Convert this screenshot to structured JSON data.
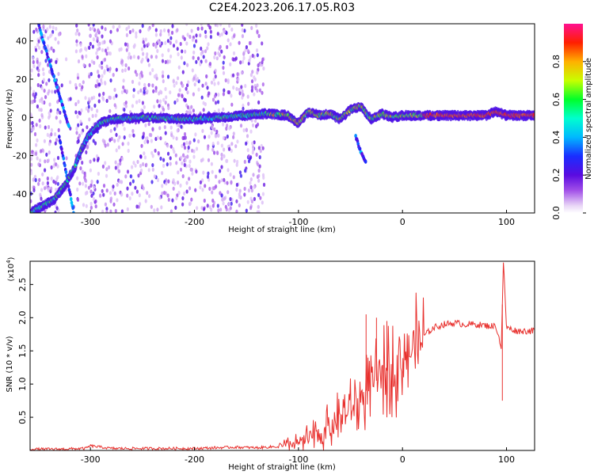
{
  "title": "C2E4.2023.206.17.05.R03",
  "colors": {
    "snr_line": "#e8312e",
    "axis": "#000000"
  },
  "chart_data": [
    {
      "type": "heatmap",
      "xlabel": "Height of straight line (km)",
      "ylabel": "Frequency (Hz)",
      "xlim": [
        -358,
        127
      ],
      "ylim": [
        -50,
        49
      ],
      "xticks": [
        -300,
        -200,
        -100,
        0,
        100
      ],
      "yticks": [
        -40,
        -20,
        0,
        20,
        40
      ],
      "colorbar": {
        "label": "Normalized spectral amplitude",
        "ticks": [
          0.0,
          0.2,
          0.4,
          0.6,
          0.8
        ],
        "range": [
          0,
          1
        ],
        "colormap": "rainbow (white, violet, blue, cyan, green, yellow, red, magenta)"
      },
      "main_trace": {
        "description": "frequency of strongest signal vs height",
        "x": [
          -358,
          -345,
          -335,
          -325,
          -315,
          -308,
          -302,
          -296,
          -290,
          -280,
          -250,
          -200,
          -150,
          -130,
          -110,
          -100,
          -90,
          -80,
          -70,
          -60,
          -50,
          -40,
          -30,
          -20,
          -10,
          0,
          20,
          50,
          80,
          90,
          100,
          127
        ],
        "y": [
          -50,
          -46,
          -43,
          -36,
          -26,
          -16,
          -10,
          -6,
          -3,
          -1,
          0,
          -1,
          1,
          2,
          1,
          -3,
          3,
          1,
          2,
          -1,
          4,
          6,
          -1,
          2,
          0,
          1,
          1,
          1,
          1,
          3,
          1,
          1
        ]
      },
      "secondary_traces": [
        {
          "x": [
            -350,
            -340,
            -330,
            -320
          ],
          "y": [
            49,
            30,
            12,
            -6
          ]
        },
        {
          "x": [
            -330,
            -323,
            -316
          ],
          "y": [
            -10,
            -30,
            -50
          ]
        },
        {
          "x": [
            -45,
            -40,
            -35
          ],
          "y": [
            -10,
            -18,
            -24
          ]
        }
      ]
    },
    {
      "type": "line",
      "xlabel": "Height of straight line (km)",
      "ylabel": "SNR (10 * v/v)",
      "ylabel_note": "(x10",
      "ylabel_note_exp": "4",
      "ylabel_note_close": ")",
      "xlim": [
        -358,
        127
      ],
      "ylim": [
        0,
        2.85
      ],
      "xticks": [
        -300,
        -200,
        -100,
        0,
        100
      ],
      "yticks": [
        0.5,
        1.0,
        1.5,
        2.0,
        2.5
      ],
      "ytick_labels": [
        "0.5",
        "1.0",
        "1.5",
        "2.0",
        "2.5"
      ],
      "series": [
        {
          "x": [
            -358,
            -330,
            -305,
            -300,
            -280,
            -260,
            -240,
            -220,
            -200,
            -180,
            -160,
            -140,
            -120,
            -110,
            -100,
            -90,
            -80,
            -70,
            -60,
            -50,
            -40,
            -35,
            -30,
            -25,
            -20,
            -15,
            -10,
            -5,
            0,
            10,
            20,
            30,
            40,
            50,
            60,
            70,
            80,
            90,
            95,
            97,
            100,
            110,
            127
          ],
          "y": [
            0.02,
            0.02,
            0.03,
            0.07,
            0.03,
            0.03,
            0.03,
            0.03,
            0.03,
            0.04,
            0.05,
            0.04,
            0.06,
            0.08,
            0.12,
            0.18,
            0.26,
            0.35,
            0.5,
            0.6,
            0.75,
            0.9,
            1.0,
            1.05,
            1.15,
            1.2,
            1.25,
            1.3,
            1.4,
            1.55,
            1.72,
            1.85,
            1.9,
            1.92,
            1.9,
            1.9,
            1.88,
            1.87,
            1.55,
            2.85,
            1.85,
            1.8,
            1.8
          ]
        }
      ],
      "spikes": [
        {
          "x": -35,
          "y": 2.05
        },
        {
          "x": -25,
          "y": 2.0
        },
        {
          "x": -15,
          "y": 1.95
        },
        {
          "x": 97,
          "y": 2.85
        },
        {
          "x": 96,
          "y": 0.75
        }
      ]
    }
  ]
}
